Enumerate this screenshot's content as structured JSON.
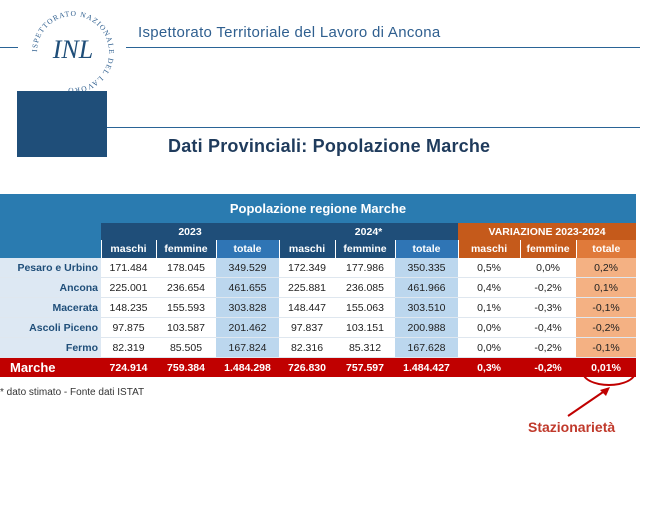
{
  "header": {
    "title": "Ispettorato Territoriale del Lavoro di Ancona",
    "seal_text": "ISPETTORATO NAZIONALE DEL LAVORO",
    "seal_letters": "INL"
  },
  "subtitle": "Dati Provinciali: Popolazione Marche",
  "table": {
    "title": "Popolazione regione Marche",
    "groups": [
      "2023",
      "2024*",
      "VARIAZIONE 2023-2024"
    ],
    "columns": [
      "maschi",
      "femmine",
      "totale",
      "maschi",
      "femmine",
      "totale",
      "maschi",
      "femmine",
      "totale"
    ],
    "rows": [
      {
        "label": "Pesaro e Urbino",
        "values": [
          "171.484",
          "178.045",
          "349.529",
          "172.349",
          "177.986",
          "350.335",
          "0,5%",
          "0,0%",
          "0,2%"
        ]
      },
      {
        "label": "Ancona",
        "values": [
          "225.001",
          "236.654",
          "461.655",
          "225.881",
          "236.085",
          "461.966",
          "0,4%",
          "-0,2%",
          "0,1%"
        ]
      },
      {
        "label": "Macerata",
        "values": [
          "148.235",
          "155.593",
          "303.828",
          "148.447",
          "155.063",
          "303.510",
          "0,1%",
          "-0,3%",
          "-0,1%"
        ]
      },
      {
        "label": "Ascoli Piceno",
        "values": [
          "97.875",
          "103.587",
          "201.462",
          "97.837",
          "103.151",
          "200.988",
          "0,0%",
          "-0,4%",
          "-0,2%"
        ]
      },
      {
        "label": "Fermo",
        "values": [
          "82.319",
          "85.505",
          "167.824",
          "82.316",
          "85.312",
          "167.628",
          "0,0%",
          "-0,2%",
          "-0,1%"
        ]
      }
    ],
    "total": {
      "label": "Marche",
      "values": [
        "724.914",
        "759.384",
        "1.484.298",
        "726.830",
        "757.597",
        "1.484.427",
        "0,3%",
        "-0,2%",
        "0,01%"
      ]
    }
  },
  "note": "* dato stimato - Fonte dati ISTAT",
  "annotation": "Stazionarietà",
  "colors": {
    "accent": "#c00000",
    "header_blue": "#1f4e79",
    "title_blue": "#2a7bb0",
    "variation_orange": "#c55a1b"
  }
}
